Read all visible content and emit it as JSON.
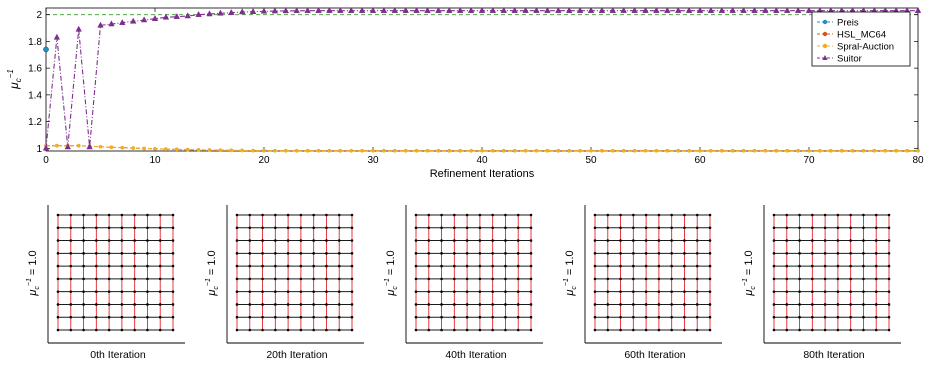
{
  "chart_data": [
    {
      "type": "line",
      "xlabel": "Refinement Iterations",
      "ylabel": "μ_c^-1",
      "xlim": [
        0,
        80
      ],
      "ylim": [
        0.98,
        2.05
      ],
      "xticks": [
        0,
        10,
        20,
        30,
        40,
        50,
        60,
        70,
        80
      ],
      "yticks": [
        1,
        1.2,
        1.4,
        1.6,
        1.8,
        2
      ],
      "reference_line": {
        "y": 2,
        "style": "dashed",
        "color": "#3a9a2a"
      },
      "grid": false,
      "legend_position": "top-right",
      "series": [
        {
          "name": "Preis",
          "color": "#1f8fc4",
          "marker": "circle",
          "x": [
            0
          ],
          "y": [
            1.74
          ]
        },
        {
          "name": "HSL_MC64",
          "color": "#d9541a",
          "marker": "circle",
          "x": [
            0,
            1,
            2,
            3,
            4,
            5,
            6,
            7,
            8,
            9,
            10,
            11,
            12,
            13,
            14,
            15,
            16,
            17,
            18,
            19,
            20,
            21,
            22,
            23,
            24,
            25,
            26,
            27,
            28,
            29,
            30,
            31,
            32,
            33,
            34,
            35,
            36,
            37,
            38,
            39,
            40,
            41,
            42,
            43,
            44,
            45,
            46,
            47,
            48,
            49,
            50,
            51,
            52,
            53,
            54,
            55,
            56,
            57,
            58,
            59,
            60,
            61,
            62,
            63,
            64,
            65,
            66,
            67,
            68,
            69,
            70,
            71,
            72,
            73,
            74,
            75,
            76,
            77,
            78,
            79,
            80
          ],
          "y": [
            1.02,
            1.02,
            1.02,
            1.02,
            1.015,
            1.012,
            1.008,
            1.005,
            1.002,
            0.999,
            0.996,
            0.994,
            0.992,
            0.99,
            0.988,
            0.987,
            0.986,
            0.985,
            0.984,
            0.983,
            0.983,
            0.982,
            0.982,
            0.982,
            0.982,
            0.982,
            0.982,
            0.982,
            0.982,
            0.982,
            0.982,
            0.982,
            0.982,
            0.982,
            0.982,
            0.982,
            0.982,
            0.982,
            0.982,
            0.982,
            0.982,
            0.982,
            0.982,
            0.982,
            0.982,
            0.982,
            0.982,
            0.982,
            0.982,
            0.982,
            0.982,
            0.982,
            0.982,
            0.982,
            0.982,
            0.982,
            0.982,
            0.982,
            0.982,
            0.982,
            0.982,
            0.982,
            0.982,
            0.982,
            0.982,
            0.982,
            0.982,
            0.982,
            0.982,
            0.982,
            0.982,
            0.982,
            0.982,
            0.982,
            0.982,
            0.982,
            0.982,
            0.982,
            0.982,
            0.982,
            0.982
          ]
        },
        {
          "name": "Spral-Auction",
          "color": "#edb120",
          "marker": "circle",
          "x": [
            0,
            1,
            2,
            3,
            4,
            5,
            6,
            7,
            8,
            9,
            10,
            11,
            12,
            13,
            14,
            15,
            16,
            17,
            18,
            19,
            20,
            21,
            22,
            23,
            24,
            25,
            26,
            27,
            28,
            29,
            30,
            31,
            32,
            33,
            34,
            35,
            36,
            37,
            38,
            39,
            40,
            41,
            42,
            43,
            44,
            45,
            46,
            47,
            48,
            49,
            50,
            51,
            52,
            53,
            54,
            55,
            56,
            57,
            58,
            59,
            60,
            61,
            62,
            63,
            64,
            65,
            66,
            67,
            68,
            69,
            70,
            71,
            72,
            73,
            74,
            75,
            76,
            77,
            78,
            79,
            80
          ],
          "y": [
            1.02,
            1.02,
            1.02,
            1.02,
            1.015,
            1.012,
            1.008,
            1.005,
            1.002,
            0.999,
            0.996,
            0.994,
            0.992,
            0.99,
            0.988,
            0.987,
            0.986,
            0.985,
            0.984,
            0.983,
            0.983,
            0.982,
            0.982,
            0.982,
            0.982,
            0.982,
            0.982,
            0.982,
            0.982,
            0.982,
            0.982,
            0.982,
            0.982,
            0.982,
            0.982,
            0.982,
            0.982,
            0.982,
            0.982,
            0.982,
            0.982,
            0.982,
            0.982,
            0.982,
            0.982,
            0.982,
            0.982,
            0.982,
            0.982,
            0.982,
            0.982,
            0.982,
            0.982,
            0.982,
            0.982,
            0.982,
            0.982,
            0.982,
            0.982,
            0.982,
            0.982,
            0.982,
            0.982,
            0.982,
            0.982,
            0.982,
            0.982,
            0.982,
            0.982,
            0.982,
            0.982,
            0.982,
            0.982,
            0.982,
            0.982,
            0.982,
            0.982,
            0.982,
            0.982,
            0.982,
            0.982
          ]
        },
        {
          "name": "Suitor",
          "color": "#7e2f8e",
          "marker": "triangle",
          "x": [
            0,
            1,
            2,
            3,
            4,
            5,
            6,
            7,
            8,
            9,
            10,
            11,
            12,
            13,
            14,
            15,
            16,
            17,
            18,
            19,
            20,
            21,
            22,
            23,
            24,
            25,
            26,
            27,
            28,
            29,
            30,
            31,
            32,
            33,
            34,
            35,
            36,
            37,
            38,
            39,
            40,
            41,
            42,
            43,
            44,
            45,
            46,
            47,
            48,
            49,
            50,
            51,
            52,
            53,
            54,
            55,
            56,
            57,
            58,
            59,
            60,
            61,
            62,
            63,
            64,
            65,
            66,
            67,
            68,
            69,
            70,
            71,
            72,
            73,
            74,
            75,
            76,
            77,
            78,
            79,
            80
          ],
          "y": [
            1.0,
            1.83,
            1.01,
            1.89,
            1.01,
            1.92,
            1.93,
            1.94,
            1.95,
            1.96,
            1.97,
            1.98,
            1.985,
            1.99,
            2.0,
            2.005,
            2.01,
            2.015,
            2.02,
            2.022,
            2.025,
            2.027,
            2.028,
            2.029,
            2.03,
            2.03,
            2.03,
            2.03,
            2.03,
            2.03,
            2.03,
            2.03,
            2.03,
            2.03,
            2.03,
            2.03,
            2.03,
            2.03,
            2.03,
            2.03,
            2.03,
            2.03,
            2.03,
            2.03,
            2.03,
            2.03,
            2.03,
            2.03,
            2.03,
            2.03,
            2.03,
            2.03,
            2.03,
            2.03,
            2.03,
            2.03,
            2.03,
            2.03,
            2.03,
            2.03,
            2.03,
            2.03,
            2.03,
            2.03,
            2.03,
            2.03,
            2.03,
            2.03,
            2.03,
            2.03,
            2.03,
            2.03,
            2.03,
            2.03,
            2.03,
            2.03,
            2.03,
            2.03,
            2.03,
            2.03,
            2.03
          ]
        }
      ]
    },
    {
      "type": "grid-mesh",
      "grid_size": [
        10,
        10
      ],
      "node_color": "#000000",
      "horizontal_edge_color": "#000000",
      "vertical_edge_color": "#e8232a",
      "panels": [
        {
          "ylabel": "μ_c^-1 = 1.0",
          "caption": "0th Iteration"
        },
        {
          "ylabel": "μ_c^-1 = 1.0",
          "caption": "20th Iteration"
        },
        {
          "ylabel": "μ_c^-1 = 1.0",
          "caption": "40th Iteration"
        },
        {
          "ylabel": "μ_c^-1 = 1.0",
          "caption": "60th Iteration"
        },
        {
          "ylabel": "μ_c^-1 = 1.0",
          "caption": "80th Iteration"
        }
      ]
    }
  ]
}
